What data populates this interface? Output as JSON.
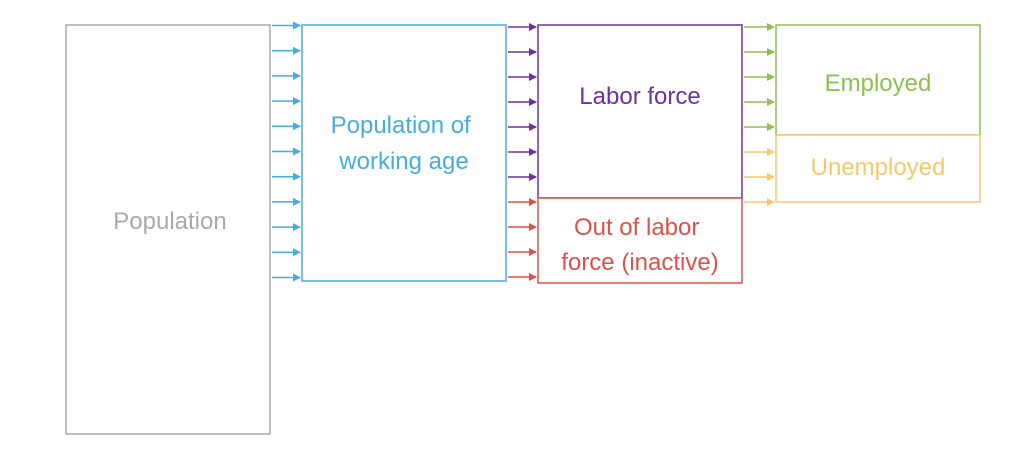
{
  "diagram": {
    "nodes": {
      "population": {
        "label": "Population",
        "color": "#aaaaaa"
      },
      "working_age": {
        "label_lines": [
          "Population of",
          "working age"
        ],
        "color": "#45ade3"
      },
      "labor_force": {
        "label": "Labor force",
        "color": "#7030a0"
      },
      "out_of_labor_force": {
        "label_lines": [
          "Out of labor",
          "force (inactive)"
        ],
        "color": "#e0504a"
      },
      "employed": {
        "label": "Employed",
        "color": "#8cc152"
      },
      "unemployed": {
        "label": "Unemployed",
        "color": "#f5c86a"
      }
    },
    "arrow_groups": {
      "population_to_working_age": {
        "count": 11,
        "color": "#45ade3"
      },
      "working_age_to_labor_force": {
        "count": 7,
        "color": "#7030a0"
      },
      "working_age_to_out_of_labor_force": {
        "count": 4,
        "color": "#e0504a"
      },
      "labor_force_to_employed": {
        "count": 5,
        "color": "#8cc152"
      },
      "labor_force_to_unemployed": {
        "count": 3,
        "color": "#f5c86a"
      }
    }
  }
}
